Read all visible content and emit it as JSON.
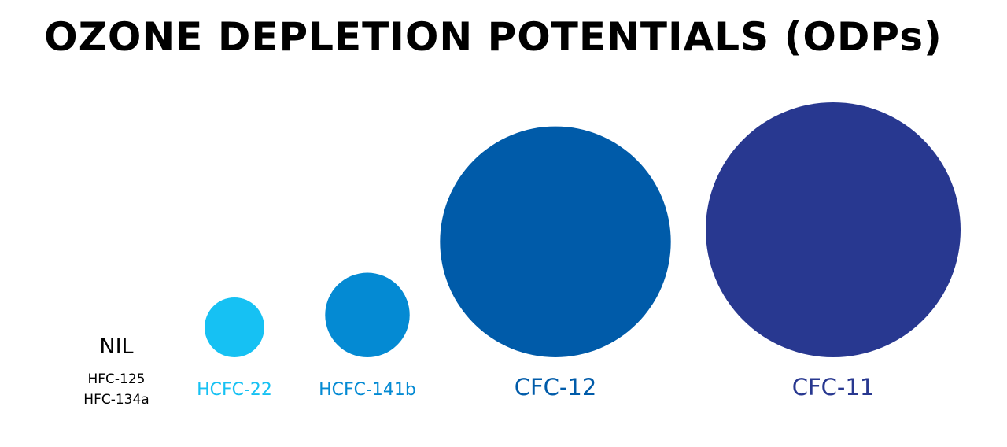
{
  "title": "OZONE DEPLETION POTENTIALS (ODPs)",
  "chart_data": {
    "type": "bubble",
    "title": "OZONE DEPLETION POTENTIALS (ODPs)",
    "items": [
      {
        "label": "NIL",
        "sublabels": [
          "HFC-125",
          "HFC-134a"
        ],
        "value": 0,
        "color": "#000000"
      },
      {
        "label": "HCFC-22",
        "value": 0.055,
        "color": "#16c1f3"
      },
      {
        "label": "HCFC-141b",
        "value": 0.11,
        "color": "#048ad3"
      },
      {
        "label": "CFC-12",
        "value": 0.82,
        "color": "#005ba9"
      },
      {
        "label": "CFC-11",
        "value": 1.0,
        "color": "#283890"
      }
    ]
  }
}
